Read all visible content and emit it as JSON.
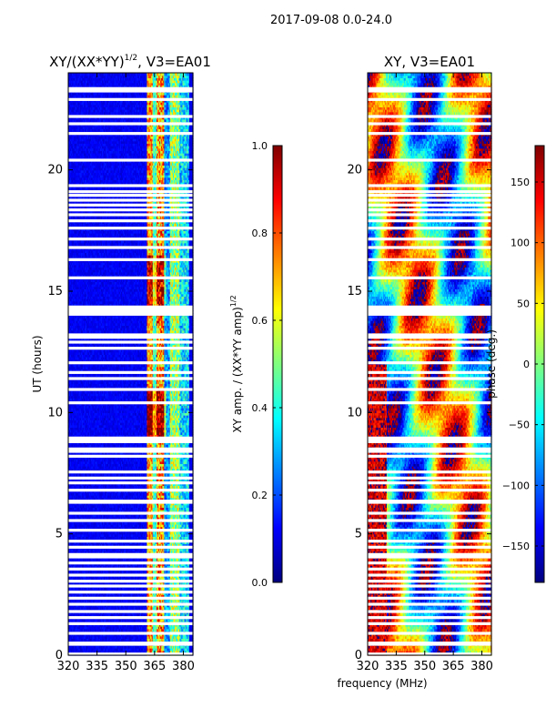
{
  "figure": {
    "suptitle": "2017-09-08 0.0-24.0",
    "shared_xlabel": "frequency (MHz)"
  },
  "colors": {
    "jet": [
      "#00007f",
      "#0000ff",
      "#007fff",
      "#00ffff",
      "#7fff7f",
      "#ffff00",
      "#ff7f00",
      "#ff0000",
      "#7f0000"
    ],
    "background": "#ffffff",
    "gap": "#ffffff"
  },
  "chart_data": [
    {
      "type": "heatmap",
      "title": "XY/(XX*YY)",
      "title_sup": "1/2",
      "title_suffix": ", V3=EA01",
      "xlabel": "",
      "ylabel": "UT (hours)",
      "xlim": [
        320,
        385
      ],
      "ylim": [
        0,
        24
      ],
      "xticks": [
        320,
        335,
        350,
        365,
        380
      ],
      "yticks": [
        0,
        5,
        10,
        15,
        20
      ],
      "colorbar": {
        "label": "XY amp. / (XX*YY amp)",
        "label_sup": "1/2",
        "range": [
          0.0,
          1.0
        ],
        "ticks": [
          "0.0",
          "0.2",
          "0.4",
          "0.6",
          "0.8",
          "1.0"
        ]
      },
      "description": "low amplitude (~0.05-0.15) below 361 MHz; enhanced bands 362-383 MHz with values up to ~1.0"
    },
    {
      "type": "heatmap",
      "title": "XY, V3=EA01",
      "xlabel": "",
      "ylabel": "",
      "xlim": [
        320,
        385
      ],
      "ylim": [
        0,
        24
      ],
      "xticks": [
        320,
        335,
        350,
        365,
        380
      ],
      "yticks": [
        0,
        5,
        10,
        15,
        20
      ],
      "colorbar": {
        "label": "phase (deg.)",
        "range": [
          -180,
          180
        ],
        "ticks": [
          "−150",
          "−100",
          "−50",
          "0",
          "50",
          "100",
          "150"
        ]
      },
      "description": "phase varies smoothly with frequency and time, wrapping between -180 and 180 deg"
    }
  ],
  "flagged_hours": [
    0.05,
    0.45,
    0.5,
    0.9,
    1.3,
    1.55,
    1.8,
    2.1,
    2.35,
    2.6,
    2.85,
    3.05,
    3.3,
    3.55,
    3.8,
    4.05,
    4.15,
    4.45,
    4.7,
    5.15,
    5.55,
    5.85,
    6.3,
    6.35,
    6.8,
    7.1,
    7.3,
    7.55,
    8.2,
    8.4,
    8.5,
    8.8,
    8.85,
    8.95,
    10.4,
    10.95,
    11.4,
    11.65,
    12.05,
    12.65,
    12.9,
    13.1,
    13.2,
    14.05,
    14.15,
    14.25,
    14.35,
    15.55,
    16.3,
    16.8,
    17.15,
    17.6,
    17.9,
    18.15,
    18.35,
    18.55,
    18.75,
    18.95,
    19.1,
    19.35,
    20.4,
    21.5,
    21.9,
    22.2,
    22.9,
    23.25,
    23.35
  ]
}
